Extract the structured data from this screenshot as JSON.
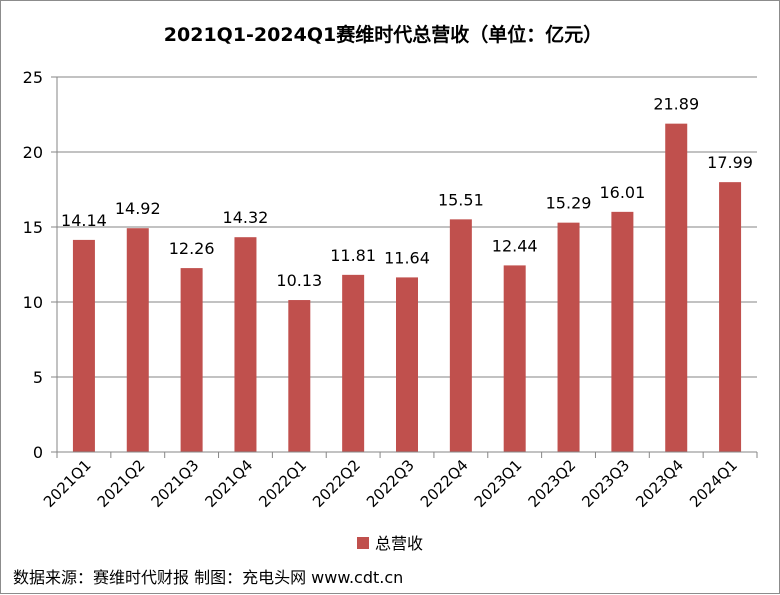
{
  "chart_data": {
    "type": "bar",
    "title": "2021Q1-2024Q1赛维时代总营收（单位：亿元）",
    "categories": [
      "2021Q1",
      "2021Q2",
      "2021Q3",
      "2021Q4",
      "2022Q1",
      "2022Q2",
      "2022Q3",
      "2022Q4",
      "2023Q1",
      "2023Q2",
      "2023Q3",
      "2023Q4",
      "2024Q1"
    ],
    "series": [
      {
        "name": "总营收",
        "values": [
          14.14,
          14.92,
          12.26,
          14.32,
          10.13,
          11.81,
          11.64,
          15.51,
          12.44,
          15.29,
          16.01,
          21.89,
          17.99
        ],
        "labels": [
          "14.14",
          "14.92",
          "12.26",
          "14.32",
          "10.13",
          "11.81",
          "11.64",
          "15.51",
          "12.44",
          "15.29",
          "16.01",
          "21.89",
          "17.99"
        ],
        "color": "#c0504d"
      }
    ],
    "xlabel": "",
    "ylabel": "",
    "ylim": [
      0,
      25
    ],
    "yticks": [
      "0",
      "5",
      "10",
      "15",
      "20",
      "25"
    ],
    "grid": true,
    "legend": "bottom"
  },
  "footer": {
    "source_text": "数据来源：赛维时代财报  制图：充电头网 www.cdt.cn"
  },
  "colors": {
    "bar": "#c0504d",
    "grid": "#868686"
  }
}
